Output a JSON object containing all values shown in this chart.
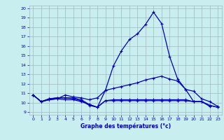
{
  "title": "Graphe des températures (°c)",
  "bg_color": "#c8eef0",
  "line_color": "#0000bb",
  "grid_color": "#a0b8c0",
  "xlim_min": -0.5,
  "xlim_max": 23.5,
  "ylim_min": 8.7,
  "ylim_max": 20.3,
  "xticks": [
    0,
    1,
    2,
    3,
    4,
    5,
    6,
    7,
    8,
    9,
    10,
    11,
    12,
    13,
    14,
    15,
    16,
    17,
    18,
    19,
    20,
    21,
    22,
    23
  ],
  "yticks": [
    9,
    10,
    11,
    12,
    13,
    14,
    15,
    16,
    17,
    18,
    19,
    20
  ],
  "series_peak_x": [
    0,
    1,
    2,
    3,
    4,
    5,
    6,
    7,
    8,
    9,
    10,
    11,
    12,
    13,
    14,
    15,
    16,
    17,
    18,
    19,
    20,
    21,
    22
  ],
  "series_peak_y": [
    10.8,
    10.1,
    10.4,
    10.5,
    10.5,
    10.4,
    10.2,
    9.7,
    9.5,
    11.3,
    13.9,
    15.5,
    16.7,
    17.3,
    18.3,
    19.6,
    18.4,
    14.9,
    12.5,
    11.4,
    10.1,
    10.1,
    9.6
  ],
  "series_mean_high_x": [
    0,
    1,
    2,
    3,
    4,
    5,
    6,
    7,
    8,
    9,
    10,
    11,
    12,
    13,
    14,
    15,
    16,
    17,
    18,
    19,
    20,
    21,
    22,
    23
  ],
  "series_mean_high_y": [
    10.8,
    10.1,
    10.3,
    10.4,
    10.8,
    10.6,
    10.5,
    10.3,
    10.5,
    11.3,
    11.5,
    11.7,
    11.9,
    12.1,
    12.4,
    12.6,
    12.8,
    12.5,
    12.3,
    11.4,
    11.2,
    10.4,
    10.1,
    9.6
  ],
  "series_mean_low_x": [
    0,
    1,
    2,
    3,
    4,
    5,
    6,
    7,
    8,
    9,
    10,
    11,
    12,
    13,
    14,
    15,
    16,
    17,
    18,
    19,
    20,
    21,
    22,
    23
  ],
  "series_mean_low_y": [
    10.8,
    10.1,
    10.3,
    10.4,
    10.3,
    10.3,
    10.1,
    9.8,
    9.5,
    10.2,
    10.2,
    10.2,
    10.2,
    10.2,
    10.2,
    10.2,
    10.2,
    10.2,
    10.2,
    10.2,
    10.1,
    10.1,
    9.7,
    9.5
  ],
  "series_min_x": [
    0,
    1,
    2,
    3,
    4,
    5,
    6,
    7,
    8,
    9,
    10,
    11,
    12,
    13,
    14,
    15,
    16,
    17,
    18,
    19,
    20,
    21,
    22,
    23
  ],
  "series_min_y": [
    10.8,
    10.1,
    10.4,
    10.5,
    10.5,
    10.5,
    10.3,
    9.8,
    9.5,
    10.2,
    10.3,
    10.3,
    10.3,
    10.3,
    10.3,
    10.3,
    10.3,
    10.3,
    10.3,
    10.3,
    10.1,
    10.1,
    9.7,
    9.5
  ]
}
